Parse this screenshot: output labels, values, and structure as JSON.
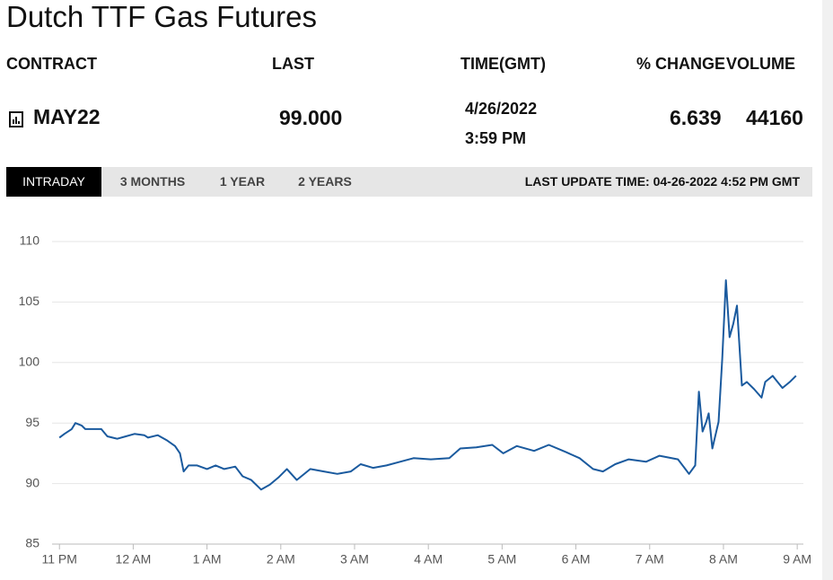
{
  "header": {
    "title": "Dutch TTF Gas Futures"
  },
  "table": {
    "headers": [
      "CONTRACT",
      "LAST",
      "TIME(GMT)",
      "% CHANGE",
      "VOLUME"
    ],
    "rows": [
      [
        "MAY22",
        "99.000",
        "4/26/2022",
        "3:59 PM",
        "6.639",
        "44160"
      ]
    ]
  },
  "tabs": [
    "INTRADAY",
    "3 MONTHS",
    "1 YEAR",
    "2 YEARS"
  ],
  "last_update": "LAST UPDATE TIME: 04-26-2022 4:52 PM GMT",
  "chart_data": {
    "type": "line",
    "color": "#1a5a9e",
    "grid": true,
    "x": [
      "23:00",
      "23:04",
      "23:10",
      "23:13",
      "23:18",
      "23:21",
      "23:34",
      "23:39",
      "23:47",
      "23:54",
      "00:01",
      "00:09",
      "00:12",
      "00:20",
      "00:27",
      "00:34",
      "00:38",
      "00:41",
      "00:45",
      "00:52",
      "01:00",
      "01:07",
      "01:14",
      "01:23",
      "01:29",
      "01:36",
      "01:44",
      "01:51",
      "01:58",
      "02:05",
      "02:13",
      "02:24",
      "02:35",
      "02:46",
      "02:57",
      "03:05",
      "03:15",
      "03:26",
      "03:37",
      "03:48",
      "04:02",
      "04:17",
      "04:26",
      "04:39",
      "04:52",
      "05:01",
      "05:12",
      "05:26",
      "05:38",
      "05:52",
      "06:03",
      "06:14",
      "06:22",
      "06:32",
      "06:43",
      "06:57",
      "07:08",
      "07:23",
      "07:32",
      "07:37",
      "07:40",
      "07:43",
      "07:46",
      "07:48",
      "07:51",
      "07:56",
      "07:59",
      "08:02",
      "08:05",
      "08:08",
      "08:11",
      "08:15",
      "08:19",
      "08:25",
      "08:31",
      "08:34",
      "08:40",
      "08:44",
      "08:48",
      "08:54",
      "08:59"
    ],
    "values": [
      93.8,
      94.1,
      94.5,
      95.0,
      94.8,
      94.5,
      94.5,
      93.9,
      93.7,
      93.9,
      94.1,
      94.0,
      93.8,
      94.0,
      93.6,
      93.1,
      92.5,
      91.0,
      91.5,
      91.5,
      91.2,
      91.5,
      91.2,
      91.4,
      90.6,
      90.3,
      89.5,
      89.9,
      90.5,
      91.2,
      90.3,
      91.2,
      91.0,
      90.8,
      91.0,
      91.6,
      91.3,
      91.5,
      91.8,
      92.1,
      92.0,
      92.1,
      92.9,
      93.0,
      93.2,
      92.5,
      93.1,
      92.7,
      93.2,
      92.6,
      92.1,
      91.2,
      91.0,
      91.6,
      92.0,
      91.8,
      92.3,
      92.0,
      90.8,
      91.5,
      97.6,
      94.3,
      95.1,
      95.8,
      92.9,
      95.1,
      100.3,
      106.8,
      102.1,
      103.2,
      104.7,
      98.1,
      98.4,
      97.8,
      97.1,
      98.4,
      98.9,
      98.4,
      97.9,
      98.4,
      98.9
    ],
    "xlim": [
      "22:54",
      "09:05"
    ],
    "xticks": [
      {
        "value": "23:00",
        "label": "11 PM"
      },
      {
        "value": "00:00",
        "label": "12 AM"
      },
      {
        "value": "01:00",
        "label": "1 AM"
      },
      {
        "value": "02:00",
        "label": "2 AM"
      },
      {
        "value": "03:00",
        "label": "3 AM"
      },
      {
        "value": "04:00",
        "label": "4 AM"
      },
      {
        "value": "05:00",
        "label": "5 AM"
      },
      {
        "value": "06:00",
        "label": "6 AM"
      },
      {
        "value": "07:00",
        "label": "7 AM"
      },
      {
        "value": "08:00",
        "label": "8 AM"
      },
      {
        "value": "09:00",
        "label": "9 AM"
      }
    ],
    "ylim": [
      85,
      110
    ],
    "yticks": [
      85,
      90,
      95,
      100,
      105,
      110
    ]
  }
}
